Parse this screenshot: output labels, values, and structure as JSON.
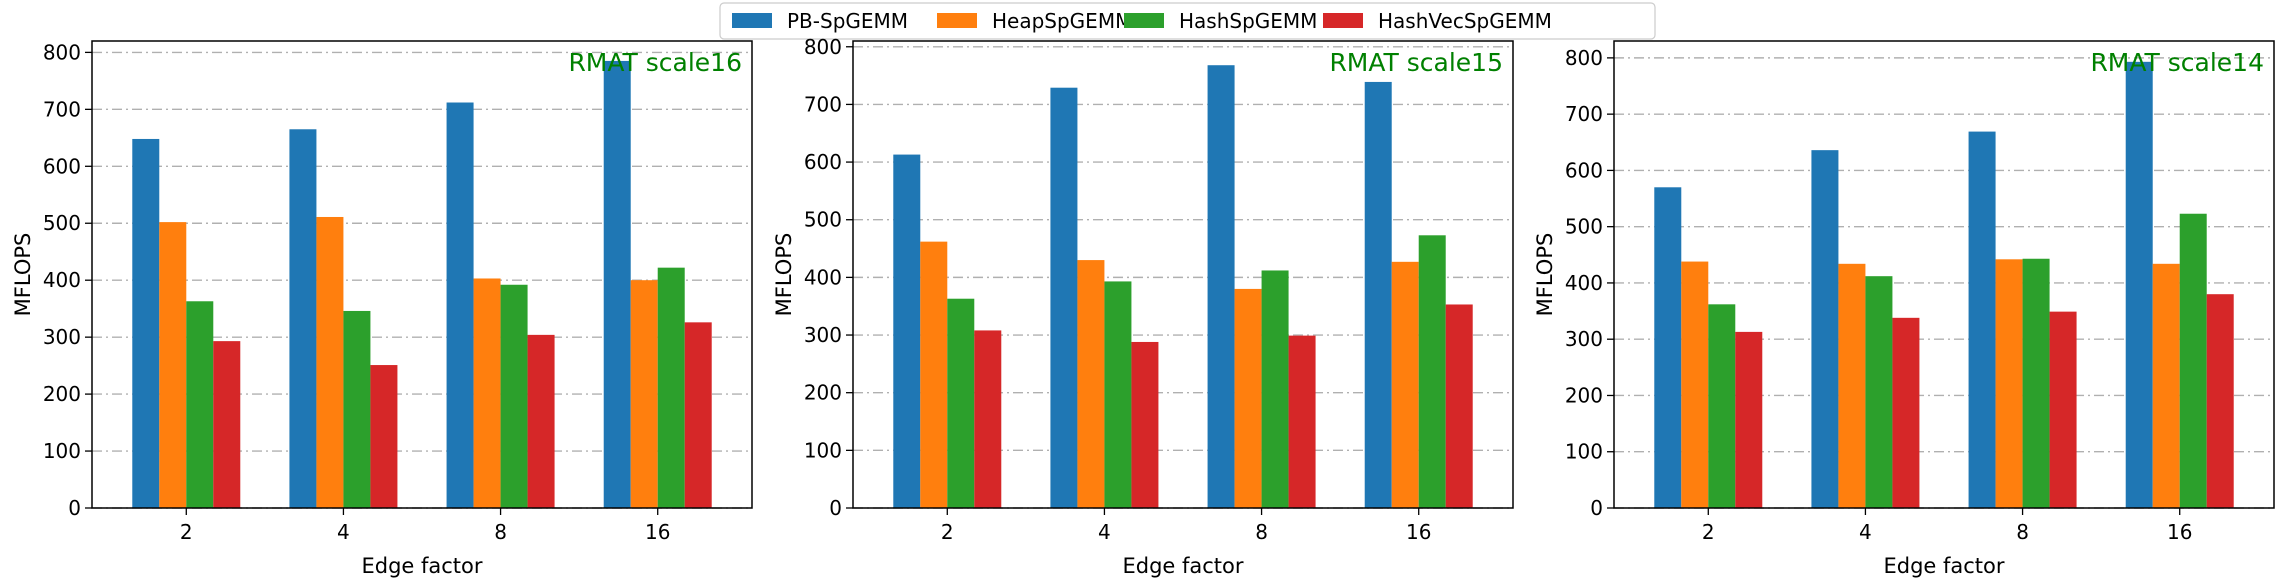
{
  "chart_data": [
    {
      "type": "bar",
      "title": "RMAT scale16",
      "xlabel": "Edge factor",
      "ylabel": "MFLOPS",
      "categories": [
        "2",
        "4",
        "8",
        "16"
      ],
      "ylim": [
        0,
        820
      ],
      "yticks": [
        0,
        100,
        200,
        300,
        400,
        500,
        600,
        700,
        800
      ],
      "grid": "horizontal dash-dot",
      "series": [
        {
          "name": "PB-SpGEMM",
          "values": [
            648,
            665,
            712,
            785
          ]
        },
        {
          "name": "HeapSpGEMM",
          "values": [
            502,
            511,
            403,
            400
          ]
        },
        {
          "name": "HashSpGEMM",
          "values": [
            363,
            346,
            392,
            422
          ]
        },
        {
          "name": "HashVecSpGEMM",
          "values": [
            293,
            251,
            304,
            326
          ]
        }
      ]
    },
    {
      "type": "bar",
      "title": "RMAT scale15",
      "xlabel": "Edge factor",
      "ylabel": "MFLOPS",
      "categories": [
        "2",
        "4",
        "8",
        "16"
      ],
      "ylim": [
        0,
        810
      ],
      "yticks": [
        0,
        100,
        200,
        300,
        400,
        500,
        600,
        700,
        800
      ],
      "grid": "horizontal dash-dot",
      "series": [
        {
          "name": "PB-SpGEMM",
          "values": [
            613,
            729,
            768,
            739
          ]
        },
        {
          "name": "HeapSpGEMM",
          "values": [
            462,
            430,
            380,
            427
          ]
        },
        {
          "name": "HashSpGEMM",
          "values": [
            363,
            393,
            412,
            473
          ]
        },
        {
          "name": "HashVecSpGEMM",
          "values": [
            308,
            288,
            299,
            353
          ]
        }
      ]
    },
    {
      "type": "bar",
      "title": "RMAT scale14",
      "xlabel": "Edge factor",
      "ylabel": "MFLOPS",
      "categories": [
        "2",
        "4",
        "8",
        "16"
      ],
      "ylim": [
        0,
        830
      ],
      "yticks": [
        0,
        100,
        200,
        300,
        400,
        500,
        600,
        700,
        800
      ],
      "grid": "horizontal dash-dot",
      "series": [
        {
          "name": "PB-SpGEMM",
          "values": [
            570,
            636,
            669,
            793
          ]
        },
        {
          "name": "HeapSpGEMM",
          "values": [
            438,
            434,
            442,
            434
          ]
        },
        {
          "name": "HashSpGEMM",
          "values": [
            362,
            412,
            443,
            523
          ]
        },
        {
          "name": "HashVecSpGEMM",
          "values": [
            313,
            338,
            349,
            380
          ]
        }
      ]
    }
  ],
  "legend": {
    "placement": "top-center",
    "items": [
      {
        "label": "PB-SpGEMM",
        "color": "#1f77b4"
      },
      {
        "label": "HeapSpGEMM",
        "color": "#ff7f0e"
      },
      {
        "label": "HashSpGEMM",
        "color": "#2ca02c"
      },
      {
        "label": "HashVecSpGEMM",
        "color": "#d62728"
      }
    ]
  },
  "colors": {
    "series": [
      "#1f77b4",
      "#ff7f0e",
      "#2ca02c",
      "#d62728"
    ],
    "title": "#008000",
    "grid": "#b0b0b0"
  }
}
